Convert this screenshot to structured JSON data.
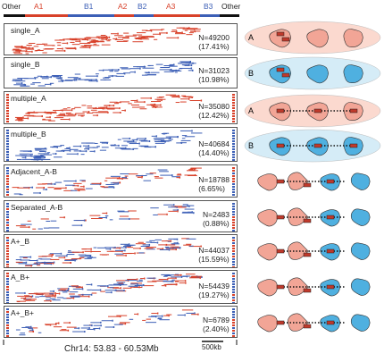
{
  "top_segments": [
    {
      "label": "Other",
      "type": "O"
    },
    {
      "label": "A1",
      "type": "A"
    },
    {
      "label": "B1",
      "type": "B"
    },
    {
      "label": "A2",
      "type": "A"
    },
    {
      "label": "B2",
      "type": "B"
    },
    {
      "label": "A3",
      "type": "A"
    },
    {
      "label": "B3",
      "type": "B"
    },
    {
      "label": "Other",
      "type": "O"
    }
  ],
  "panels": [
    {
      "label": "single_A",
      "n_line1": "N=49200",
      "n_line2": "(17.41%)",
      "mode": "A",
      "count": 49200
    },
    {
      "label": "single_B",
      "n_line1": "N=31023",
      "n_line2": "(10.98%)",
      "mode": "B",
      "count": 31023
    },
    {
      "label": "multiple_A",
      "n_line1": "N=35080",
      "n_line2": "(12.42%)",
      "mode": "A",
      "count": 35080
    },
    {
      "label": "multiple_B",
      "n_line1": "N=40684",
      "n_line2": "(14.40%)",
      "mode": "B",
      "count": 40684
    },
    {
      "label": "Adjacent_A-B",
      "n_line1": "N=18788",
      "n_line2": "(6.65%)",
      "mode": "AB",
      "count": 18788
    },
    {
      "label": "Separated_A-B",
      "n_line1": "N=2483",
      "n_line2": "(0.88%)",
      "mode": "AB",
      "count": 2483
    },
    {
      "label": "A+_B",
      "n_line1": "N=44037",
      "n_line2": "(15.59%)",
      "mode": "AB",
      "count": 44037
    },
    {
      "label": "A_B+",
      "n_line1": "N=54439",
      "n_line2": "(19.27%)",
      "mode": "AB",
      "count": 54439
    },
    {
      "label": "A+_B+",
      "n_line1": "N=6789",
      "n_line2": "(2.40%)",
      "mode": "AB",
      "count": 6789
    }
  ],
  "x_axis_label": "Chr14: 53.83 - 60.53Mb",
  "scale_bar_label": "500kb",
  "diagram_letters": [
    "A",
    "B",
    "A",
    "B"
  ],
  "colors": {
    "A": "#d8412a",
    "B": "#3c5fb6",
    "Other": "#111111",
    "A_blob": "#f2a596",
    "B_blob": "#4fb0e0",
    "A_bg": "#fbd9cf",
    "B_bg": "#d5ecf7"
  }
}
